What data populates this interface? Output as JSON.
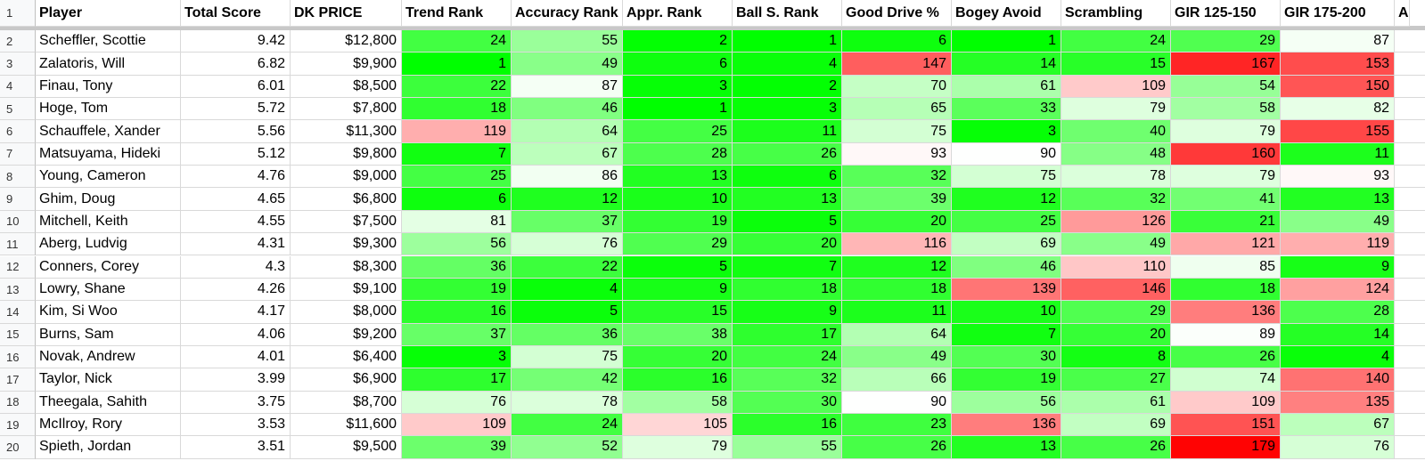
{
  "sheet": {
    "headers": [
      "Player",
      "Total Score",
      "DK PRICE",
      "Trend Rank",
      "Accuracy Rank",
      "Appr. Rank",
      "Ball S. Rank",
      "Good Drive %",
      "Bogey Avoid",
      "Scrambling",
      "GIR 125-150",
      "GIR 175-200",
      "A"
    ],
    "header_row_number": "1",
    "rank_color_scale": {
      "min_color": "#00ff00",
      "mid_color": "#ffffff",
      "max_color": "#ff0000",
      "min_value": 1,
      "max_value": 180
    },
    "rows": [
      {
        "n": "2",
        "player": "Scheffler, Scottie",
        "score": "9.42",
        "price": "$12,800",
        "ranks": [
          24,
          55,
          2,
          1,
          6,
          1,
          24,
          29,
          87
        ]
      },
      {
        "n": "3",
        "player": "Zalatoris, Will",
        "score": "6.82",
        "price": "$9,900",
        "ranks": [
          1,
          49,
          6,
          4,
          147,
          14,
          15,
          167,
          153
        ]
      },
      {
        "n": "4",
        "player": "Finau, Tony",
        "score": "6.01",
        "price": "$8,500",
        "ranks": [
          22,
          87,
          3,
          2,
          70,
          61,
          109,
          54,
          150
        ]
      },
      {
        "n": "5",
        "player": "Hoge, Tom",
        "score": "5.72",
        "price": "$7,800",
        "ranks": [
          18,
          46,
          1,
          3,
          65,
          33,
          79,
          58,
          82
        ]
      },
      {
        "n": "6",
        "player": "Schauffele, Xander",
        "score": "5.56",
        "price": "$11,300",
        "ranks": [
          119,
          64,
          25,
          11,
          75,
          3,
          40,
          79,
          155
        ]
      },
      {
        "n": "7",
        "player": "Matsuyama, Hideki",
        "score": "5.12",
        "price": "$9,800",
        "ranks": [
          7,
          67,
          28,
          26,
          93,
          90,
          48,
          160,
          11
        ]
      },
      {
        "n": "8",
        "player": "Young, Cameron",
        "score": "4.76",
        "price": "$9,000",
        "ranks": [
          25,
          86,
          13,
          6,
          32,
          75,
          78,
          79,
          93
        ]
      },
      {
        "n": "9",
        "player": "Ghim, Doug",
        "score": "4.65",
        "price": "$6,800",
        "ranks": [
          6,
          12,
          10,
          13,
          39,
          12,
          32,
          41,
          13
        ]
      },
      {
        "n": "10",
        "player": "Mitchell, Keith",
        "score": "4.55",
        "price": "$7,500",
        "ranks": [
          81,
          37,
          19,
          5,
          20,
          25,
          126,
          21,
          49
        ]
      },
      {
        "n": "11",
        "player": "Aberg, Ludvig",
        "score": "4.31",
        "price": "$9,300",
        "ranks": [
          56,
          76,
          29,
          20,
          116,
          69,
          49,
          121,
          119
        ]
      },
      {
        "n": "12",
        "player": "Conners, Corey",
        "score": "4.3",
        "price": "$8,300",
        "ranks": [
          36,
          22,
          5,
          7,
          12,
          46,
          110,
          85,
          9
        ]
      },
      {
        "n": "13",
        "player": "Lowry, Shane",
        "score": "4.26",
        "price": "$9,100",
        "ranks": [
          19,
          4,
          9,
          18,
          18,
          139,
          146,
          18,
          124
        ]
      },
      {
        "n": "14",
        "player": "Kim, Si Woo",
        "score": "4.17",
        "price": "$8,000",
        "ranks": [
          16,
          5,
          15,
          9,
          11,
          10,
          29,
          136,
          28
        ]
      },
      {
        "n": "15",
        "player": "Burns, Sam",
        "score": "4.06",
        "price": "$9,200",
        "ranks": [
          37,
          36,
          38,
          17,
          64,
          7,
          20,
          89,
          14
        ]
      },
      {
        "n": "16",
        "player": "Novak, Andrew",
        "score": "4.01",
        "price": "$6,400",
        "ranks": [
          3,
          75,
          20,
          24,
          49,
          30,
          8,
          26,
          4
        ]
      },
      {
        "n": "17",
        "player": "Taylor, Nick",
        "score": "3.99",
        "price": "$6,900",
        "ranks": [
          17,
          42,
          16,
          32,
          66,
          19,
          27,
          74,
          140
        ]
      },
      {
        "n": "18",
        "player": "Theegala, Sahith",
        "score": "3.75",
        "price": "$8,700",
        "ranks": [
          76,
          78,
          58,
          30,
          90,
          56,
          61,
          109,
          135
        ]
      },
      {
        "n": "19",
        "player": "McIlroy, Rory",
        "score": "3.53",
        "price": "$11,600",
        "ranks": [
          109,
          24,
          105,
          16,
          23,
          136,
          69,
          151,
          67
        ]
      },
      {
        "n": "20",
        "player": "Spieth, Jordan",
        "score": "3.51",
        "price": "$9,500",
        "ranks": [
          39,
          52,
          79,
          55,
          26,
          13,
          26,
          179,
          76
        ]
      }
    ]
  }
}
